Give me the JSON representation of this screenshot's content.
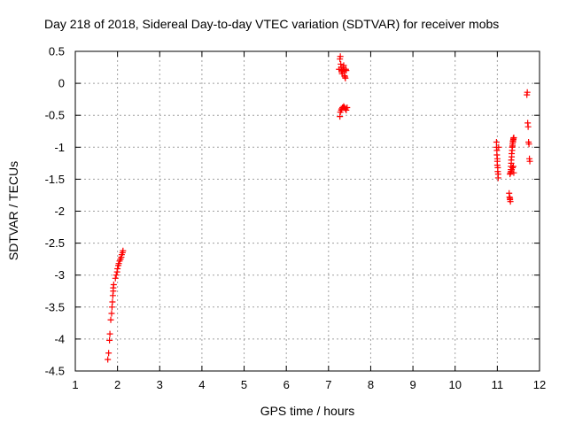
{
  "chart_data": {
    "type": "scatter",
    "title": "Day 218 of 2018, Sidereal Day-to-day VTEC variation (SDTVAR) for receiver mobs",
    "xlabel": "GPS time / hours",
    "ylabel": "SDTVAR / TECUs",
    "xlim": [
      1,
      12
    ],
    "ylim": [
      -4.5,
      0.5
    ],
    "xticks": [
      "1",
      "2",
      "3",
      "4",
      "5",
      "6",
      "7",
      "8",
      "9",
      "10",
      "11",
      "12"
    ],
    "yticks": [
      "0.5",
      "0",
      "-0.5",
      "-1",
      "-1.5",
      "-2",
      "-2.5",
      "-3",
      "-3.5",
      "-4",
      "-4.5"
    ],
    "grid": true,
    "marker_color": "#ff0000",
    "series": [
      {
        "name": "mobs",
        "x": [
          1.77,
          1.79,
          1.81,
          1.82,
          1.84,
          1.86,
          1.87,
          1.88,
          1.89,
          1.9,
          1.9,
          1.91,
          1.95,
          1.97,
          1.99,
          2.0,
          2.02,
          2.03,
          2.05,
          2.07,
          2.09,
          2.1,
          2.12,
          2.13,
          7.25,
          7.27,
          7.28,
          7.29,
          7.3,
          7.31,
          7.32,
          7.33,
          7.34,
          7.35,
          7.36,
          7.37,
          7.38,
          7.39,
          7.4,
          7.41,
          7.42,
          7.27,
          7.28,
          7.3,
          7.31,
          7.33,
          7.34,
          7.36,
          7.38,
          7.4,
          7.42,
          7.44,
          10.98,
          10.98,
          10.99,
          10.99,
          11.0,
          11.0,
          11.0,
          11.01,
          11.01,
          11.02,
          11.02,
          11.03,
          11.28,
          11.29,
          11.3,
          11.3,
          11.31,
          11.31,
          11.32,
          11.32,
          11.33,
          11.33,
          11.34,
          11.34,
          11.35,
          11.35,
          11.36,
          11.36,
          11.37,
          11.37,
          11.38,
          11.38,
          11.39,
          11.39,
          11.3,
          11.32,
          11.34,
          11.36,
          11.38,
          11.7,
          11.71,
          11.72,
          11.73,
          11.74,
          11.75,
          11.76,
          11.77
        ],
        "y": [
          -4.32,
          -4.22,
          -4.02,
          -3.92,
          -3.7,
          -3.6,
          -3.5,
          -3.42,
          -3.32,
          -3.25,
          -3.2,
          -3.15,
          -3.05,
          -3.0,
          -2.95,
          -2.9,
          -2.85,
          -2.82,
          -2.78,
          -2.75,
          -2.72,
          -2.68,
          -2.65,
          -2.62,
          0.22,
          0.38,
          0.42,
          0.3,
          0.25,
          0.2,
          0.15,
          0.18,
          0.22,
          0.25,
          0.28,
          0.2,
          0.12,
          0.1,
          0.08,
          0.22,
          0.2,
          -0.52,
          -0.45,
          -0.42,
          -0.4,
          -0.38,
          -0.38,
          -0.36,
          -0.38,
          -0.4,
          -0.42,
          -0.38,
          -0.92,
          -1.0,
          -1.05,
          -1.12,
          -1.18,
          -1.22,
          -1.28,
          -1.32,
          -1.38,
          -1.42,
          -1.48,
          -1.0,
          -1.72,
          -1.78,
          -1.8,
          -1.82,
          -1.85,
          -1.4,
          -1.35,
          -1.3,
          -1.25,
          -1.2,
          -1.15,
          -1.1,
          -1.05,
          -1.0,
          -0.98,
          -0.95,
          -0.92,
          -0.9,
          -0.88,
          -0.86,
          -0.85,
          -1.4,
          -1.42,
          -1.38,
          -1.35,
          -1.32,
          -1.3,
          -0.18,
          -0.14,
          -0.62,
          -0.68,
          -0.92,
          -0.95,
          -1.18,
          -1.22
        ]
      }
    ]
  }
}
